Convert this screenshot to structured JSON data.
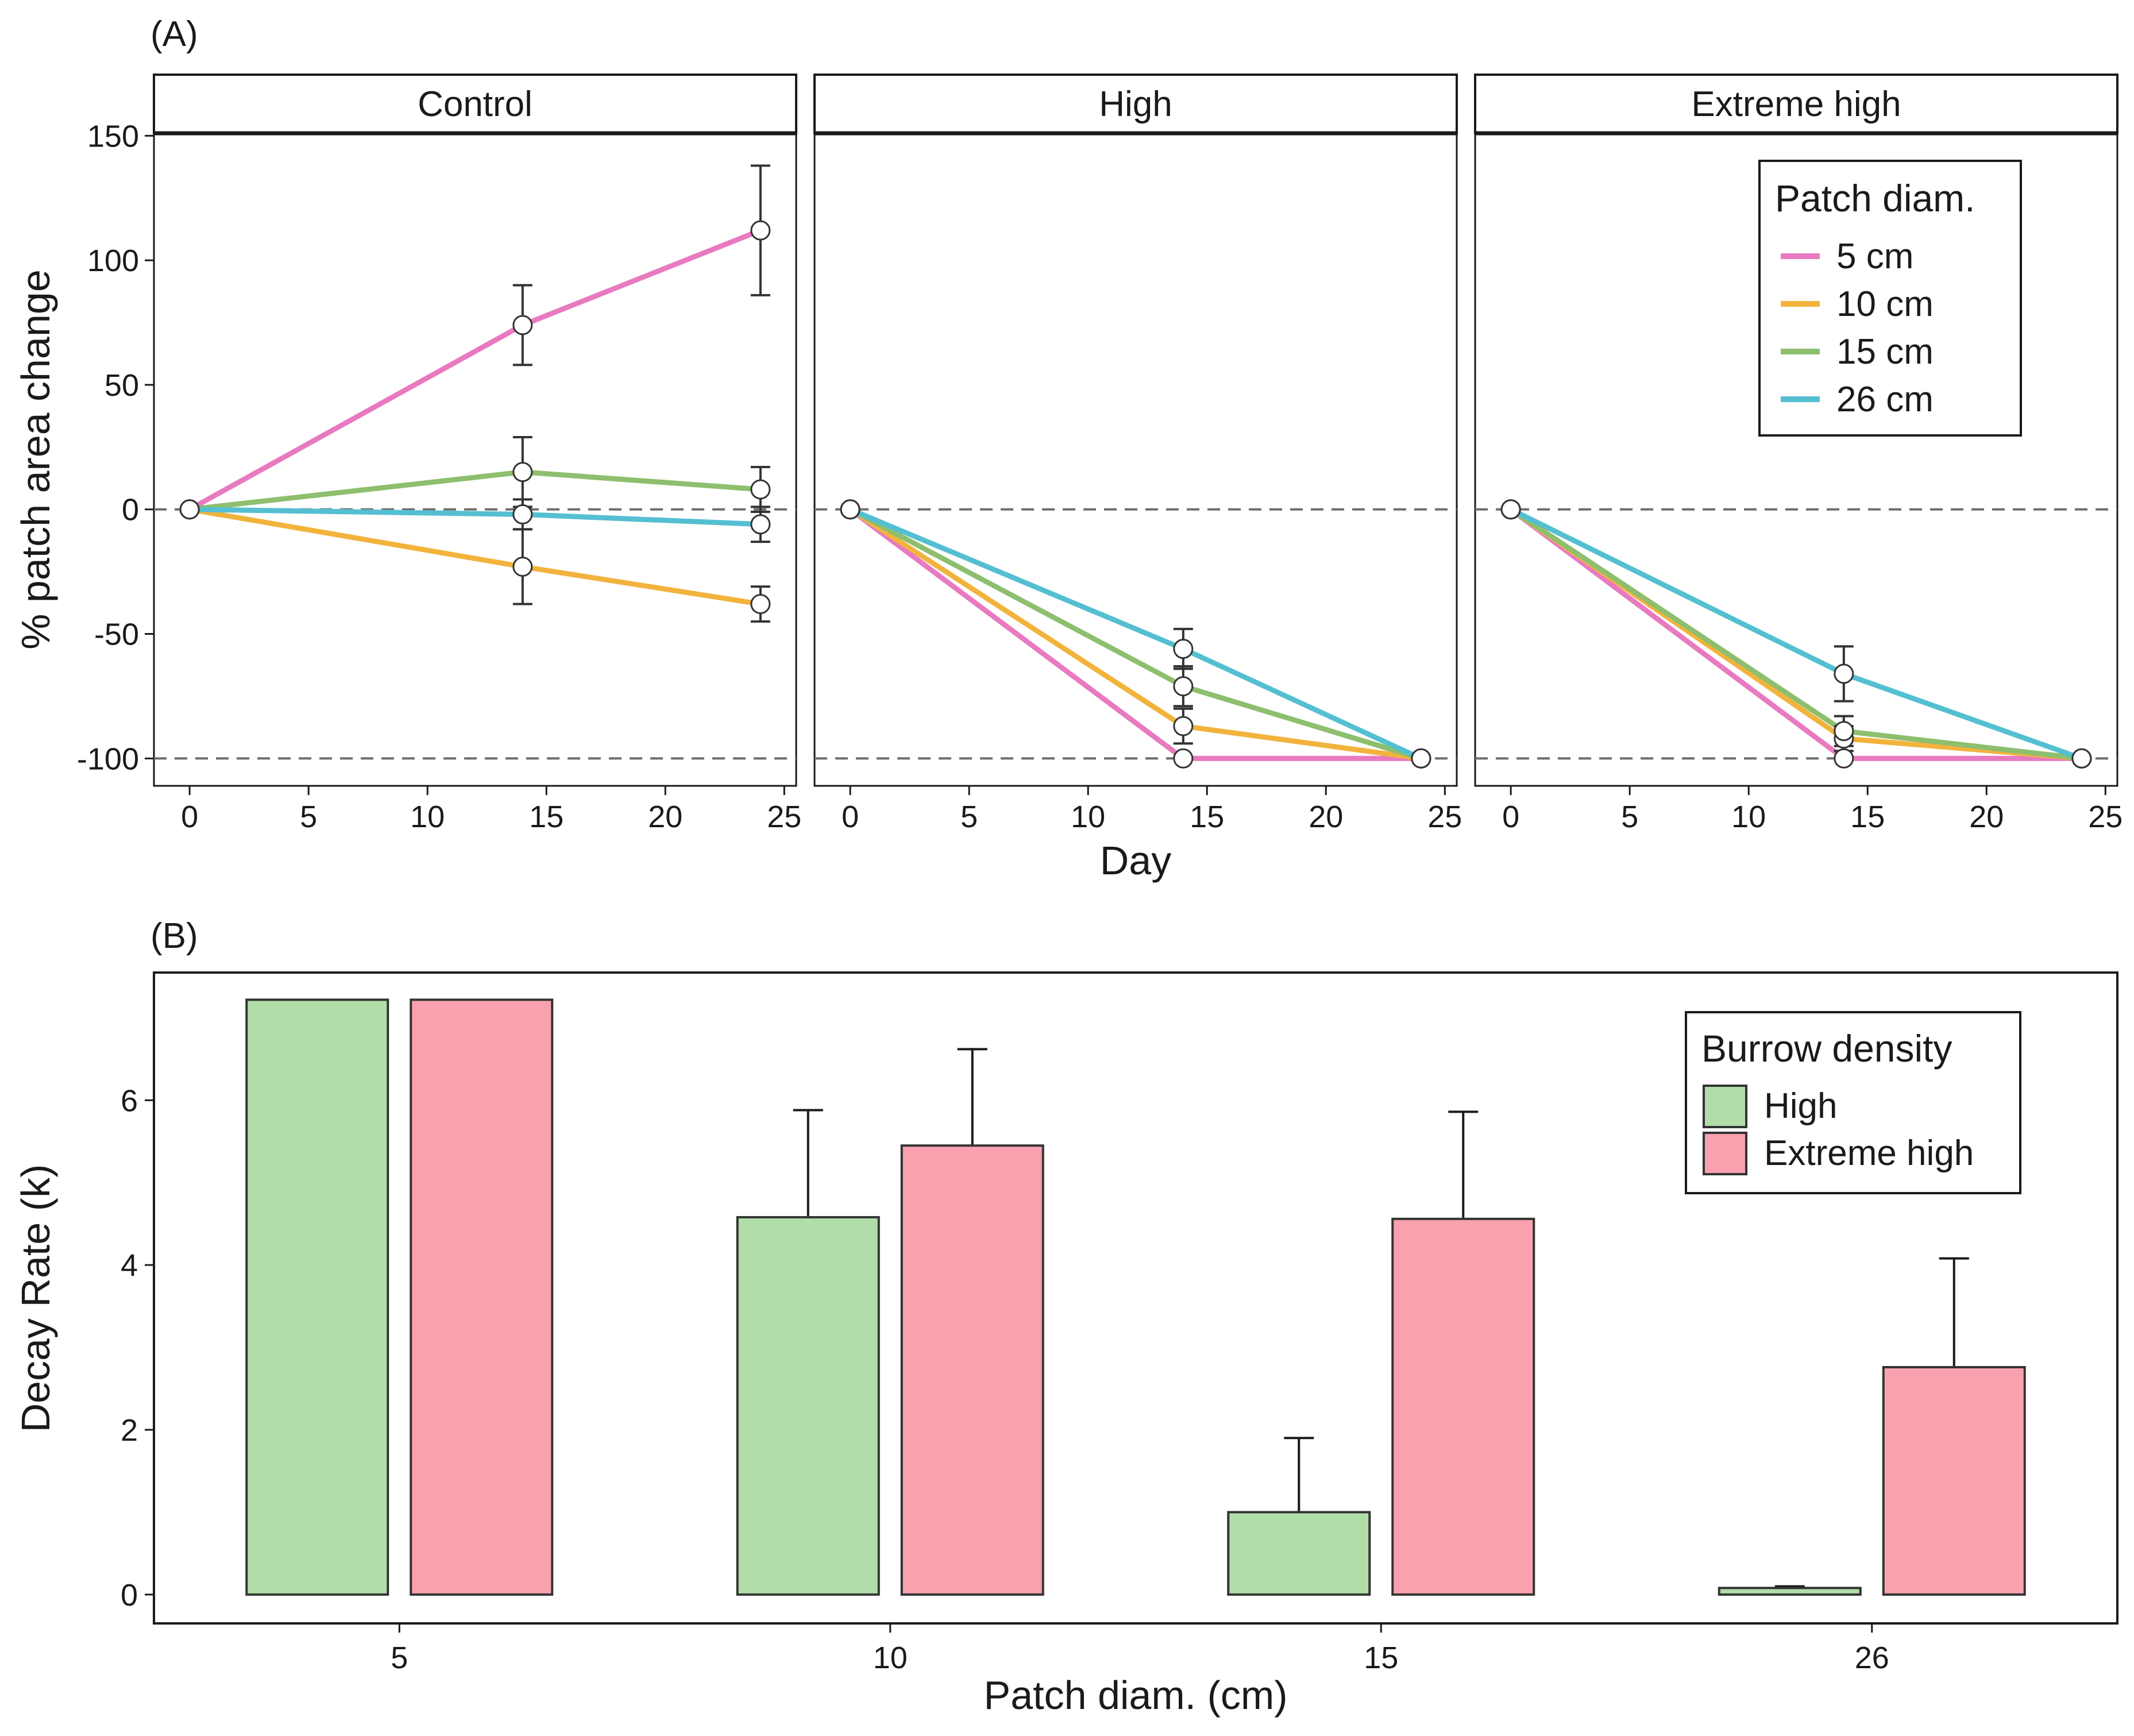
{
  "figure": {
    "panel_a_label": "(A)",
    "panel_b_label": "(B)"
  },
  "colors": {
    "5 cm": "#e87ac0",
    "10 cm": "#f2b33d",
    "15 cm": "#8dbf6e",
    "26 cm": "#55bfd2",
    "High": "#b1dea8",
    "Extreme high": "#f9a1ae"
  },
  "chart_data": [
    {
      "type": "line",
      "panel": "A",
      "ylabel": "% patch area change",
      "xlabel": "Day",
      "xlim": [
        -1.5,
        25.5
      ],
      "ylim": [
        -111,
        151
      ],
      "xticks": [
        0,
        5,
        10,
        15,
        20,
        25
      ],
      "yticks": [
        -100,
        -50,
        0,
        50,
        100,
        150
      ],
      "reference_lines": [
        0,
        -100
      ],
      "legend": {
        "title": "Patch diam.",
        "entries": [
          "5 cm",
          "10 cm",
          "15 cm",
          "26 cm"
        ],
        "position": "top-right of Extreme high facet"
      },
      "x": [
        0,
        14,
        24
      ],
      "facets": [
        {
          "name": "Control",
          "series": [
            {
              "name": "5 cm",
              "values": [
                0,
                74,
                112
              ],
              "err": [
                0,
                16,
                26
              ]
            },
            {
              "name": "10 cm",
              "values": [
                0,
                -23,
                -38
              ],
              "err": [
                0,
                15,
                7
              ]
            },
            {
              "name": "15 cm",
              "values": [
                0,
                15,
                8
              ],
              "err": [
                0,
                14,
                9
              ]
            },
            {
              "name": "26 cm",
              "values": [
                0,
                -2,
                -6
              ],
              "err": [
                0,
                6,
                7
              ]
            }
          ]
        },
        {
          "name": "High",
          "series": [
            {
              "name": "5 cm",
              "values": [
                0,
                -100,
                -100
              ],
              "err": [
                0,
                0,
                0
              ]
            },
            {
              "name": "10 cm",
              "values": [
                0,
                -87,
                -100
              ],
              "err": [
                0,
                7,
                0
              ]
            },
            {
              "name": "15 cm",
              "values": [
                0,
                -71,
                -100
              ],
              "err": [
                0,
                8,
                0
              ]
            },
            {
              "name": "26 cm",
              "values": [
                0,
                -56,
                -100
              ],
              "err": [
                0,
                8,
                0
              ]
            }
          ]
        },
        {
          "name": "Extreme high",
          "series": [
            {
              "name": "5 cm",
              "values": [
                0,
                -100,
                -100
              ],
              "err": [
                0,
                0,
                0
              ]
            },
            {
              "name": "10 cm",
              "values": [
                0,
                -92,
                -100
              ],
              "err": [
                0,
                5,
                0
              ]
            },
            {
              "name": "15 cm",
              "values": [
                0,
                -89,
                -100
              ],
              "err": [
                0,
                6,
                0
              ]
            },
            {
              "name": "26 cm",
              "values": [
                0,
                -66,
                -100
              ],
              "err": [
                0,
                11,
                0
              ]
            }
          ]
        }
      ]
    },
    {
      "type": "bar",
      "panel": "B",
      "xlabel": "Patch diam. (cm)",
      "ylabel": "Decay Rate (k)",
      "categories": [
        "5",
        "10",
        "15",
        "26"
      ],
      "ylim": [
        -0.35,
        7.55
      ],
      "yticks": [
        0,
        2,
        4,
        6
      ],
      "legend": {
        "title": "Burrow density",
        "entries": [
          "High",
          "Extreme high"
        ],
        "position": "top-right"
      },
      "series": [
        {
          "name": "High",
          "values": [
            7.22,
            4.58,
            1.0,
            0.08
          ],
          "err": [
            0,
            1.3,
            0.9,
            0.02
          ]
        },
        {
          "name": "Extreme high",
          "values": [
            7.22,
            5.45,
            4.56,
            2.76
          ],
          "err": [
            0,
            1.17,
            1.3,
            1.32
          ]
        }
      ]
    }
  ]
}
